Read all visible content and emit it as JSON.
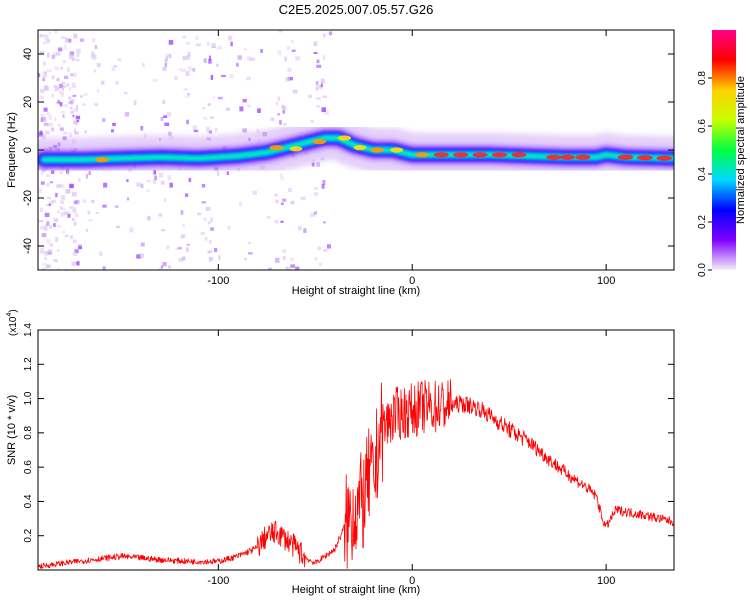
{
  "title": "C2E5.2025.007.05.57.G26",
  "chart_data": [
    {
      "type": "heatmap",
      "xlabel": "Height of straight line (km)",
      "ylabel": "Frequency (Hz)",
      "xlim": [
        -193,
        135
      ],
      "ylim": [
        -50,
        50
      ],
      "xticks": [
        -100,
        0,
        100
      ],
      "yticks": [
        -40,
        -20,
        0,
        20,
        40
      ],
      "colorbar": {
        "label": "Normalized spectral amplitude",
        "range": [
          0,
          1
        ],
        "ticks": [
          "0.0",
          "0.2",
          "0.4",
          "0.6",
          "0.8"
        ],
        "colors": [
          "#f3eef9",
          "#8000ff",
          "#0000ff",
          "#00d8ff",
          "#00ff40",
          "#c8ff00",
          "#ffd000",
          "#ff0000",
          "#ff0088"
        ]
      },
      "ridge": {
        "x": [
          -190,
          -170,
          -150,
          -130,
          -110,
          -90,
          -75,
          -65,
          -55,
          -45,
          -38,
          -30,
          -20,
          -10,
          0,
          20,
          40,
          60,
          80,
          95,
          100,
          110,
          135
        ],
        "y": [
          -4,
          -4,
          -3.5,
          -3,
          -3.5,
          -2.5,
          -1,
          1,
          3,
          5,
          5,
          2,
          0,
          0,
          -2,
          -2,
          -2,
          -2.5,
          -3,
          -3,
          -2,
          -3,
          -3.5
        ]
      },
      "hotspots": [
        {
          "x": -160,
          "y": -4,
          "v": 0.8
        },
        {
          "x": -70,
          "y": 1,
          "v": 0.82
        },
        {
          "x": -60,
          "y": 0.5,
          "v": 0.7
        },
        {
          "x": -48,
          "y": 3.5,
          "v": 0.78
        },
        {
          "x": -35,
          "y": 5,
          "v": 0.72
        },
        {
          "x": -27,
          "y": 1,
          "v": 0.68
        },
        {
          "x": -18,
          "y": 0,
          "v": 0.78
        },
        {
          "x": -8,
          "y": 0,
          "v": 0.7
        },
        {
          "x": 5,
          "y": -2,
          "v": 0.82
        },
        {
          "x": 15,
          "y": -2,
          "v": 0.92
        },
        {
          "x": 25,
          "y": -2,
          "v": 0.92
        },
        {
          "x": 35,
          "y": -2,
          "v": 0.92
        },
        {
          "x": 45,
          "y": -2,
          "v": 0.92
        },
        {
          "x": 55,
          "y": -2,
          "v": 0.88
        },
        {
          "x": 73,
          "y": -3,
          "v": 0.9
        },
        {
          "x": 80,
          "y": -3,
          "v": 0.92
        },
        {
          "x": 88,
          "y": -3,
          "v": 0.92
        },
        {
          "x": 110,
          "y": -3,
          "v": 0.95
        },
        {
          "x": 120,
          "y": -3.2,
          "v": 0.95
        },
        {
          "x": 130,
          "y": -3.4,
          "v": 0.95
        }
      ]
    },
    {
      "type": "line",
      "xlabel": "Height of straight line (km)",
      "ylabel": "SNR (10 * v/v)",
      "yscale_label": "(x10",
      "yscale_exponent": "4",
      "xlim": [
        -193,
        135
      ],
      "ylim": [
        0,
        1.4
      ],
      "xticks": [
        -100,
        0,
        100
      ],
      "yticks": [
        "0.2",
        "0.4",
        "0.6",
        "0.8",
        "1.0",
        "1.2",
        "1.4"
      ],
      "series": [
        {
          "color": "#ff0000",
          "x": [
            -193,
            -180,
            -165,
            -150,
            -130,
            -115,
            -100,
            -90,
            -80,
            -75,
            -70,
            -65,
            -60,
            -55,
            -50,
            -45,
            -40,
            -35,
            -30,
            -25,
            -22,
            -20,
            -17,
            -15,
            -10,
            -5,
            0,
            5,
            10,
            15,
            20,
            25,
            30,
            35,
            40,
            50,
            60,
            70,
            80,
            90,
            95,
            98,
            100,
            105,
            120,
            135
          ],
          "y": [
            0.02,
            0.04,
            0.06,
            0.08,
            0.06,
            0.05,
            0.05,
            0.08,
            0.13,
            0.2,
            0.22,
            0.18,
            0.13,
            0.07,
            0.04,
            0.08,
            0.12,
            0.25,
            0.35,
            0.4,
            0.55,
            0.5,
            0.78,
            0.82,
            0.9,
            0.92,
            0.93,
            0.95,
            0.95,
            0.96,
            0.96,
            0.97,
            0.96,
            0.94,
            0.9,
            0.82,
            0.75,
            0.65,
            0.56,
            0.48,
            0.43,
            0.3,
            0.25,
            0.35,
            0.32,
            0.28
          ]
        }
      ]
    }
  ]
}
